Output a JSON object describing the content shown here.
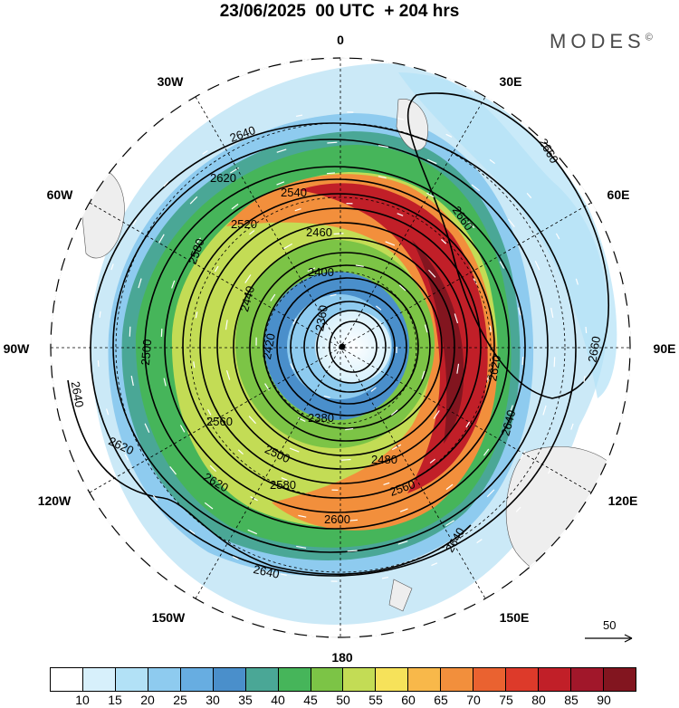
{
  "title": "23/06/2025  00 UTC  + 204 hrs",
  "brand": "MODES",
  "brand_mark": "©",
  "projection": "polar-stereographic-south",
  "longitude_labels": [
    "0",
    "30E",
    "60E",
    "90E",
    "120E",
    "150E",
    "180",
    "150W",
    "120W",
    "90W",
    "60W",
    "30W"
  ],
  "contour_labels": [
    "2640",
    "2620",
    "2540",
    "2580",
    "2520",
    "2460",
    "2400",
    "2360",
    "2560",
    "2500",
    "2440",
    "2420",
    "2380",
    "2600",
    "2480",
    "2660"
  ],
  "wind_reference": {
    "value": "50",
    "icon": "arrow-right-icon"
  },
  "colorbar": {
    "ticks": [
      "10",
      "15",
      "20",
      "25",
      "30",
      "35",
      "40",
      "45",
      "50",
      "55",
      "60",
      "65",
      "70",
      "75",
      "80",
      "85",
      "90"
    ],
    "colors": [
      "#ffffff",
      "#d7f0fb",
      "#b2e1f6",
      "#8ecbef",
      "#67ade1",
      "#4a8fcb",
      "#4aa796",
      "#46b55a",
      "#7cc446",
      "#c3dc55",
      "#f6e25a",
      "#f8b84a",
      "#f28f3c",
      "#ea6230",
      "#dd3a2a",
      "#c11f28",
      "#a1172a",
      "#82151f"
    ]
  }
}
